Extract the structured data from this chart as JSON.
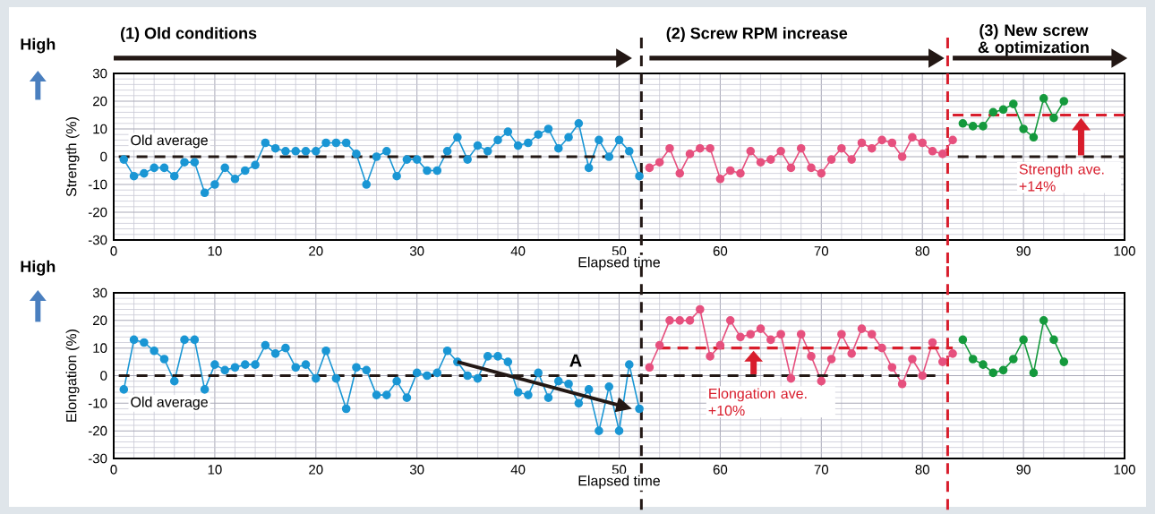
{
  "chart_data": [
    {
      "type": "line",
      "xlabel": "Elapsed time",
      "ylabel": "Strength (%)",
      "xlim": [
        0,
        100
      ],
      "xticks": [
        0,
        10,
        20,
        30,
        40,
        50,
        60,
        70,
        80,
        90,
        100
      ],
      "ylim": [
        -30,
        30
      ],
      "yticks": [
        -30,
        -20,
        -10,
        0,
        10,
        20,
        30
      ],
      "grid": true,
      "marker": "circle",
      "line_style": "solid",
      "series": [
        {
          "color": "#1a96d4",
          "x": [
            1,
            2,
            3,
            4,
            5,
            6,
            7,
            8,
            9,
            10,
            11,
            12,
            13,
            14,
            15,
            16,
            17,
            18,
            19,
            20,
            21,
            22,
            23,
            24,
            25,
            26,
            27,
            28,
            29,
            30,
            31,
            32,
            33,
            34,
            35,
            36,
            37,
            38,
            39,
            40,
            41,
            42,
            43,
            44,
            45,
            46,
            47,
            48,
            49,
            50,
            51,
            52
          ],
          "values": [
            -1,
            -7,
            -6,
            -4,
            -4,
            -7,
            -2,
            -2,
            -13,
            -10,
            -4,
            -8,
            -5,
            -3,
            5,
            3,
            2,
            2,
            2,
            2,
            5,
            5,
            5,
            1,
            -10,
            0,
            2,
            -7,
            -1,
            -1,
            -5,
            -5,
            2,
            7,
            -1,
            4,
            2,
            6,
            9,
            4,
            5,
            8,
            10,
            3,
            7,
            12,
            -4,
            6,
            0,
            6,
            2,
            -7
          ]
        },
        {
          "color": "#e6507e",
          "x": [
            53,
            54,
            55,
            56,
            57,
            58,
            59,
            60,
            61,
            62,
            63,
            64,
            65,
            66,
            67,
            68,
            69,
            70,
            71,
            72,
            73,
            74,
            75,
            76,
            77,
            78,
            79,
            80,
            81,
            82,
            83
          ],
          "values": [
            -4,
            -2,
            3,
            -6,
            1,
            3,
            3,
            -8,
            -5,
            -6,
            2,
            -2,
            -1,
            2,
            -4,
            3,
            -4,
            -6,
            -1,
            3,
            -1,
            5,
            3,
            6,
            5,
            0,
            7,
            5,
            2,
            1,
            6
          ]
        },
        {
          "color": "#14993c",
          "x": [
            84,
            85,
            86,
            87,
            88,
            89,
            90,
            91,
            92,
            93,
            94
          ],
          "values": [
            12,
            11,
            11,
            16,
            17,
            19,
            10,
            7,
            21,
            14,
            20
          ]
        },
        {
          "color": "#231815",
          "marker": "none",
          "line_style": "dashed",
          "x": [
            0.5,
            50.5
          ],
          "values": [
            0,
            0
          ]
        },
        {
          "color": "#231815",
          "marker": "none",
          "line_style": "dashed",
          "x": [
            83.5,
            100
          ],
          "values": [
            0,
            0
          ]
        },
        {
          "color": "#d81d2c",
          "marker": "none",
          "line_style": "dashed",
          "x": [
            83,
            100
          ],
          "values": [
            15,
            15
          ]
        }
      ],
      "ref_lines": [
        {
          "axis": "x",
          "value": 52.2,
          "color": "#231815",
          "line_style": "dashed"
        },
        {
          "axis": "x",
          "value": 82.5,
          "color": "#d81d2c",
          "line_style": "dashed"
        }
      ],
      "annotations": [
        "(1) Old conditions",
        "(2) Screw RPM increase",
        "(3) New screw & optimization",
        "High",
        "Old average",
        "Strength ave. +14%"
      ]
    },
    {
      "type": "line",
      "xlabel": "Elapsed time",
      "ylabel": "Elongation (%)",
      "xlim": [
        0,
        100
      ],
      "xticks": [
        0,
        10,
        20,
        30,
        40,
        50,
        60,
        70,
        80,
        90,
        100
      ],
      "ylim": [
        -30,
        30
      ],
      "yticks": [
        -30,
        -20,
        -10,
        0,
        10,
        20,
        30
      ],
      "grid": true,
      "marker": "circle",
      "line_style": "solid",
      "series": [
        {
          "color": "#1a96d4",
          "x": [
            1,
            2,
            3,
            4,
            5,
            6,
            7,
            8,
            9,
            10,
            11,
            12,
            13,
            14,
            15,
            16,
            17,
            18,
            19,
            20,
            21,
            22,
            23,
            24,
            25,
            26,
            27,
            28,
            29,
            30,
            31,
            32,
            33,
            34,
            35,
            36,
            37,
            38,
            39,
            40,
            41,
            42,
            43,
            44,
            45,
            46,
            47,
            48,
            49,
            50,
            51,
            52
          ],
          "values": [
            -5,
            13,
            12,
            9,
            6,
            -2,
            13,
            13,
            -5,
            4,
            2,
            3,
            4,
            4,
            11,
            8,
            10,
            3,
            4,
            -1,
            9,
            -1,
            -12,
            3,
            2,
            -7,
            -7,
            -2,
            -8,
            1,
            0,
            1,
            9,
            5,
            0,
            -1,
            7,
            7,
            5,
            -6,
            -7,
            1,
            -8,
            -2,
            -3,
            -10,
            -5,
            -20,
            -4,
            -20,
            4,
            -12
          ]
        },
        {
          "color": "#e6507e",
          "x": [
            53,
            54,
            55,
            56,
            57,
            58,
            59,
            60,
            61,
            62,
            63,
            64,
            65,
            66,
            67,
            68,
            69,
            70,
            71,
            72,
            73,
            74,
            75,
            76,
            77,
            78,
            79,
            80,
            81,
            82,
            83
          ],
          "values": [
            3,
            11,
            20,
            20,
            20,
            24,
            7,
            11,
            20,
            14,
            15,
            17,
            13,
            15,
            -1,
            15,
            7,
            -2,
            6,
            15,
            8,
            17,
            15,
            10,
            3,
            -3,
            6,
            0,
            12,
            5,
            8
          ]
        },
        {
          "color": "#14993c",
          "x": [
            84,
            85,
            86,
            87,
            88,
            89,
            90,
            91,
            92,
            93,
            94
          ],
          "values": [
            13,
            6,
            4,
            1,
            2,
            6,
            13,
            1,
            20,
            13,
            5
          ]
        },
        {
          "color": "#231815",
          "marker": "none",
          "line_style": "dashed",
          "x": [
            0.5,
            81.5
          ],
          "values": [
            0,
            0
          ]
        },
        {
          "color": "#d81d2c",
          "marker": "none",
          "line_style": "dashed",
          "x": [
            54,
            83
          ],
          "values": [
            10,
            10
          ]
        }
      ],
      "ref_lines": [
        {
          "axis": "x",
          "value": 52.2,
          "color": "#231815",
          "line_style": "dashed"
        },
        {
          "axis": "x",
          "value": 82.5,
          "color": "#d81d2c",
          "line_style": "dashed"
        }
      ],
      "annotations": [
        "High",
        "Old average",
        "A",
        "Elongation ave. +10%"
      ]
    }
  ]
}
